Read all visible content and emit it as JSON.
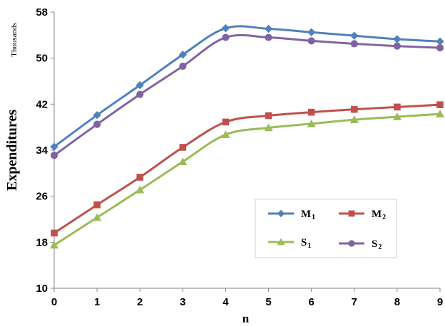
{
  "chart_data": {
    "type": "line",
    "title": "",
    "xlabel": "n",
    "ylabel": "Expenditures",
    "y_units": "Thousands",
    "x": [
      0,
      1,
      2,
      3,
      4,
      5,
      6,
      7,
      8,
      9
    ],
    "xlim": [
      0,
      9
    ],
    "ylim": [
      10,
      58
    ],
    "yticks": [
      10,
      18,
      26,
      34,
      42,
      50,
      58
    ],
    "grid": false,
    "legend_position": "bottom-right inside plot",
    "series": [
      {
        "name": "M",
        "subscript": "1",
        "marker": "diamond",
        "color": "#4F81BD",
        "values": [
          34.6,
          40.1,
          45.3,
          50.6,
          55.2,
          55.1,
          54.5,
          53.9,
          53.3,
          52.9
        ]
      },
      {
        "name": "M",
        "subscript": "2",
        "marker": "square",
        "color": "#C0504D",
        "values": [
          19.6,
          24.5,
          29.3,
          34.5,
          38.9,
          40.0,
          40.6,
          41.1,
          41.5,
          41.9
        ]
      },
      {
        "name": "S",
        "subscript": "1",
        "marker": "triangle",
        "color": "#9BBB59",
        "values": [
          17.5,
          22.3,
          27.1,
          32.0,
          36.7,
          37.9,
          38.6,
          39.3,
          39.8,
          40.3
        ]
      },
      {
        "name": "S",
        "subscript": "2",
        "marker": "circle",
        "color": "#8064A2",
        "values": [
          33.1,
          38.5,
          43.7,
          48.6,
          53.6,
          53.6,
          53.0,
          52.5,
          52.1,
          51.8
        ]
      }
    ]
  }
}
